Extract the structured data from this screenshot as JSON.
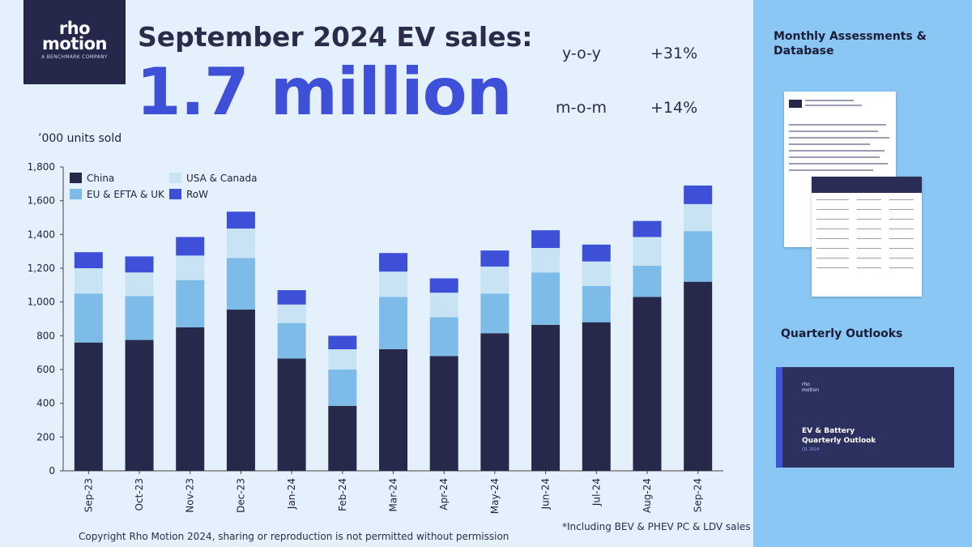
{
  "logo": {
    "line1": "rho",
    "line2": "motion",
    "tagline": "A BENCHMARK COMPANY"
  },
  "headline": "September 2024 EV sales:",
  "big_number": "1.7 million",
  "stats": [
    {
      "label": "y-o-y",
      "value": "+31%"
    },
    {
      "label": "m-o-m",
      "value": "+14%"
    }
  ],
  "units_label": "’000 units sold",
  "copyright": "Copyright Rho Motion 2024, sharing or reproduction is not permitted without permission",
  "footnote": "*Including BEV & PHEV PC & LDV sales",
  "sidebar": {
    "title1": "Monthly Assessments & Database",
    "title2": "Quarterly Outlooks",
    "cover_title": "EV & Battery\nQuarterly Outlook",
    "cover_sub": "Q1 2024"
  },
  "colors": {
    "china": "#262949",
    "eu": "#7dbbe8",
    "usa": "#c8e3f4",
    "row": "#3e4fd8",
    "accent": "#3e4fd8",
    "background": "#e4f0fb",
    "sidebar": "#8ac7f5"
  },
  "chart_data": {
    "type": "bar",
    "stacked": true,
    "categories": [
      "Sep-23",
      "Oct-23",
      "Nov-23",
      "Dec-23",
      "Jan-24",
      "Feb-24",
      "Mar-24",
      "Apr-24",
      "May-24",
      "Jun-24",
      "Jul-24",
      "Aug-24",
      "Sep-24"
    ],
    "series": [
      {
        "name": "China",
        "color": "#262949",
        "values": [
          760,
          775,
          850,
          955,
          665,
          385,
          720,
          680,
          815,
          865,
          880,
          1030,
          1120
        ]
      },
      {
        "name": "EU & EFTA & UK",
        "color": "#7dbbe8",
        "values": [
          290,
          260,
          280,
          305,
          210,
          215,
          310,
          230,
          235,
          310,
          215,
          185,
          300
        ]
      },
      {
        "name": "USA & Canada",
        "color": "#c8e3f4",
        "values": [
          150,
          140,
          145,
          175,
          110,
          120,
          150,
          145,
          160,
          145,
          145,
          170,
          160
        ]
      },
      {
        "name": "RoW",
        "color": "#3e4fd8",
        "values": [
          95,
          95,
          110,
          100,
          85,
          80,
          110,
          85,
          95,
          105,
          100,
          95,
          110
        ]
      }
    ],
    "legend_order": [
      "China",
      "USA & Canada",
      "EU & EFTA & UK",
      "RoW"
    ],
    "ylim": [
      0,
      1800
    ],
    "yticks": [
      0,
      200,
      400,
      600,
      800,
      1000,
      1200,
      1400,
      1600,
      1800
    ],
    "ytick_labels": [
      "0",
      "200",
      "400",
      "600",
      "800",
      "1,000",
      "1,200",
      "1,400",
      "1,600",
      "1,800"
    ],
    "legend_position": "top-left",
    "grid": false
  }
}
